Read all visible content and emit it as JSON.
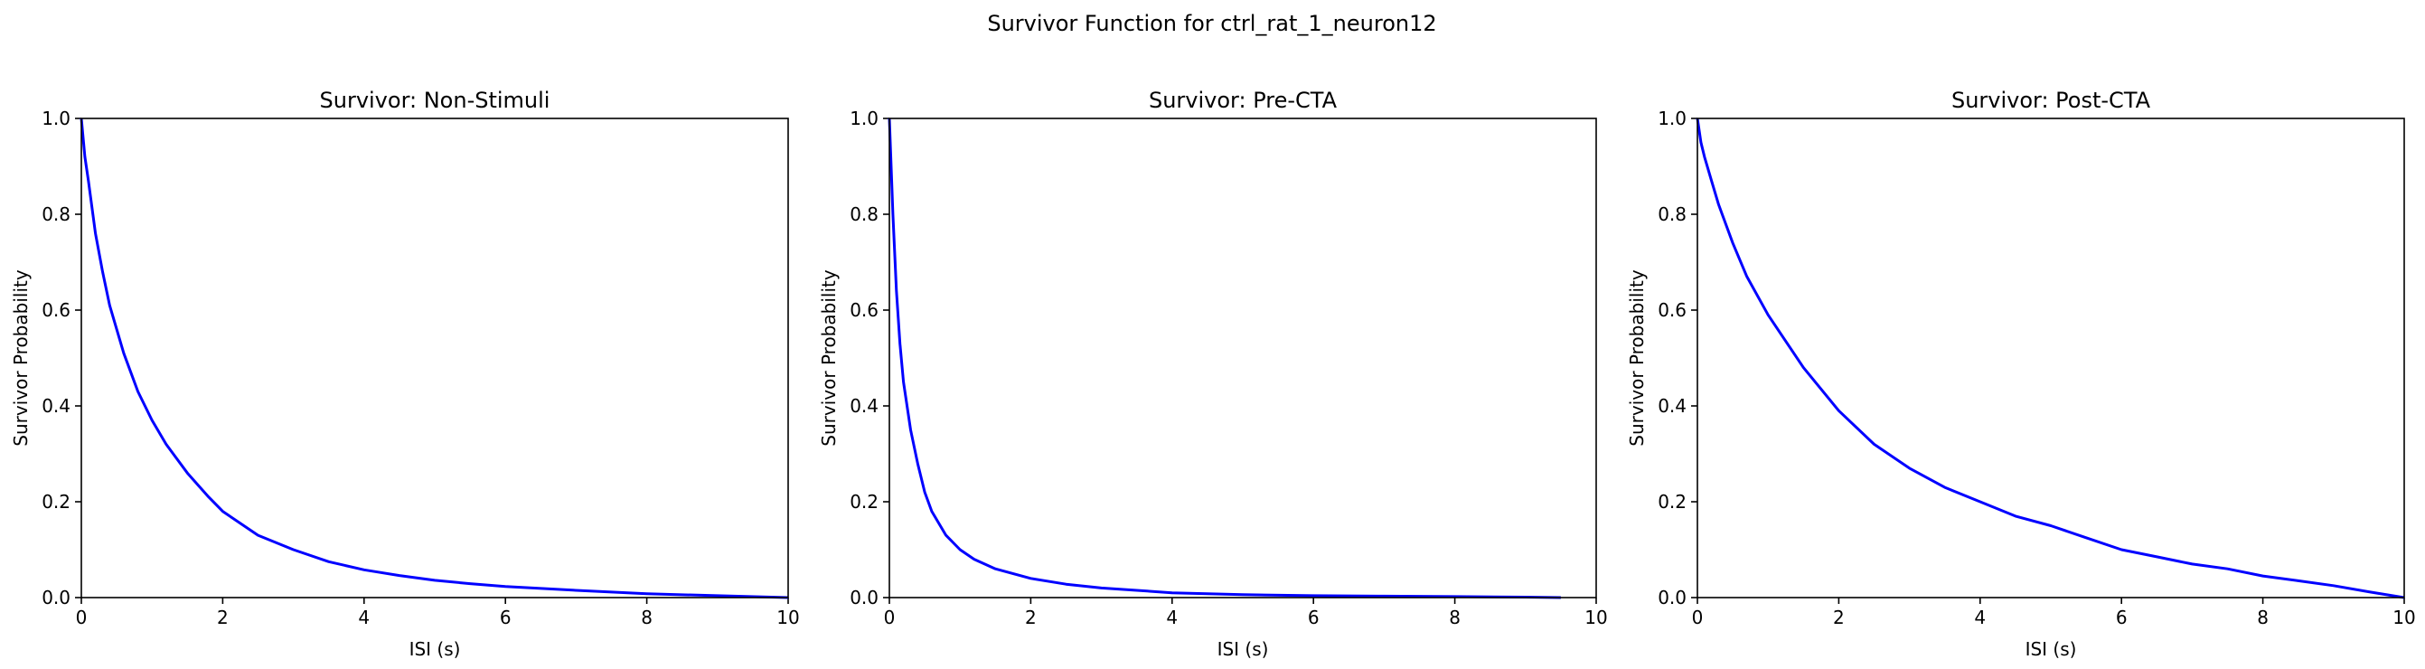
{
  "figure": {
    "suptitle": "Survivor Function for ctrl_rat_1_neuron12"
  },
  "chart_data": [
    {
      "type": "line",
      "title": "Survivor: Non-Stimuli",
      "xlabel": "ISI (s)",
      "ylabel": "Survivor Probability",
      "xlim": [
        0,
        10
      ],
      "ylim": [
        0,
        1
      ],
      "xticks": [
        "0",
        "2",
        "4",
        "6",
        "8",
        "10"
      ],
      "yticks": [
        "0.0",
        "0.2",
        "0.4",
        "0.6",
        "0.8",
        "1.0"
      ],
      "grid": false,
      "series": [
        {
          "color": "#0000ff",
          "x": [
            0,
            0.05,
            0.1,
            0.2,
            0.3,
            0.4,
            0.5,
            0.6,
            0.8,
            1.0,
            1.2,
            1.5,
            1.8,
            2.0,
            2.5,
            3.0,
            3.5,
            4.0,
            4.5,
            5.0,
            5.5,
            6.0,
            7.0,
            8.0,
            9.0,
            10.0
          ],
          "y": [
            1.0,
            0.92,
            0.87,
            0.76,
            0.68,
            0.61,
            0.56,
            0.51,
            0.43,
            0.37,
            0.32,
            0.26,
            0.21,
            0.18,
            0.13,
            0.1,
            0.075,
            0.058,
            0.046,
            0.036,
            0.029,
            0.023,
            0.015,
            0.008,
            0.004,
            0.0
          ]
        }
      ]
    },
    {
      "type": "line",
      "title": "Survivor: Pre-CTA",
      "xlabel": "ISI (s)",
      "ylabel": "Survivor Probability",
      "xlim": [
        0,
        10
      ],
      "ylim": [
        0,
        1
      ],
      "xticks": [
        "0",
        "2",
        "4",
        "6",
        "8",
        "10"
      ],
      "yticks": [
        "0.0",
        "0.2",
        "0.4",
        "0.6",
        "0.8",
        "1.0"
      ],
      "grid": false,
      "series": [
        {
          "color": "#0000ff",
          "x": [
            0,
            0.05,
            0.1,
            0.15,
            0.2,
            0.3,
            0.4,
            0.5,
            0.6,
            0.8,
            1.0,
            1.2,
            1.5,
            2.0,
            2.5,
            3.0,
            3.5,
            4.0,
            5.0,
            6.0,
            7.0,
            8.0,
            9.0,
            9.5
          ],
          "y": [
            1.0,
            0.8,
            0.64,
            0.53,
            0.45,
            0.35,
            0.28,
            0.22,
            0.18,
            0.13,
            0.1,
            0.08,
            0.06,
            0.04,
            0.028,
            0.02,
            0.015,
            0.01,
            0.006,
            0.004,
            0.003,
            0.002,
            0.001,
            0.0
          ]
        }
      ]
    },
    {
      "type": "line",
      "title": "Survivor: Post-CTA",
      "xlabel": "ISI (s)",
      "ylabel": "Survivor Probability",
      "xlim": [
        0,
        10
      ],
      "ylim": [
        0,
        1
      ],
      "xticks": [
        "0",
        "2",
        "4",
        "6",
        "8",
        "10"
      ],
      "yticks": [
        "0.0",
        "0.2",
        "0.4",
        "0.6",
        "0.8",
        "1.0"
      ],
      "grid": false,
      "series": [
        {
          "color": "#0000ff",
          "x": [
            0,
            0.05,
            0.1,
            0.2,
            0.3,
            0.5,
            0.7,
            1.0,
            1.5,
            2.0,
            2.5,
            3.0,
            3.5,
            4.0,
            4.5,
            5.0,
            5.5,
            6.0,
            6.5,
            7.0,
            7.5,
            8.0,
            8.5,
            9.0,
            9.5,
            10.0
          ],
          "y": [
            1.0,
            0.95,
            0.92,
            0.87,
            0.82,
            0.74,
            0.67,
            0.59,
            0.48,
            0.39,
            0.32,
            0.27,
            0.23,
            0.2,
            0.17,
            0.15,
            0.125,
            0.1,
            0.085,
            0.07,
            0.06,
            0.045,
            0.035,
            0.025,
            0.012,
            0.0
          ]
        }
      ]
    }
  ]
}
